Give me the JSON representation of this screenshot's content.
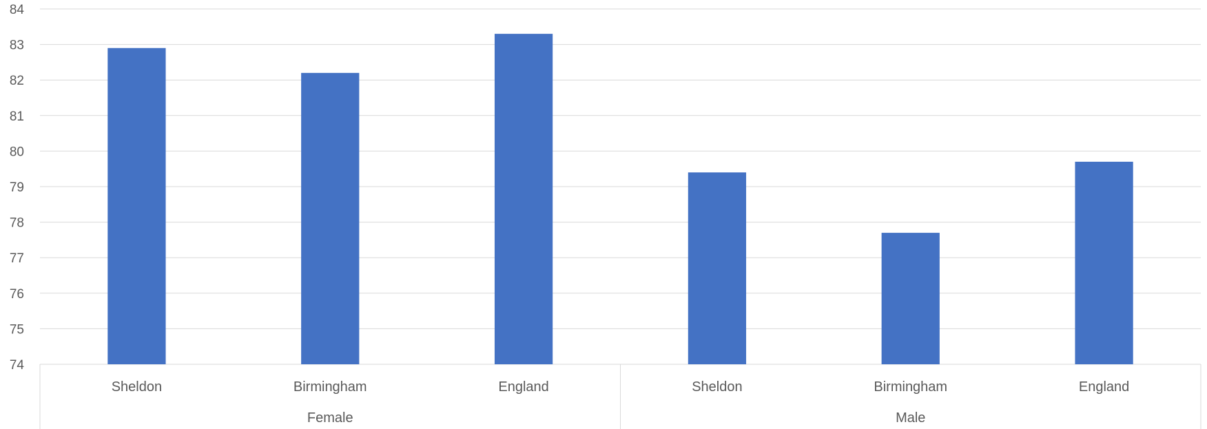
{
  "chart_data": {
    "type": "bar",
    "title": "",
    "xlabel": "",
    "ylabel": "",
    "ylim": [
      74,
      84
    ],
    "yticks": [
      74,
      75,
      76,
      77,
      78,
      79,
      80,
      81,
      82,
      83,
      84
    ],
    "grid": true,
    "legend": "none",
    "bar_color": "#4472C4",
    "groups": [
      {
        "label": "Female",
        "categories": [
          "Sheldon",
          "Birmingham",
          "England"
        ]
      },
      {
        "label": "Male",
        "categories": [
          "Sheldon",
          "Birmingham",
          "England"
        ]
      }
    ],
    "categories": [
      "Sheldon",
      "Birmingham",
      "England",
      "Sheldon",
      "Birmingham",
      "England"
    ],
    "values": [
      82.9,
      82.2,
      83.3,
      79.4,
      77.7,
      79.7
    ]
  }
}
